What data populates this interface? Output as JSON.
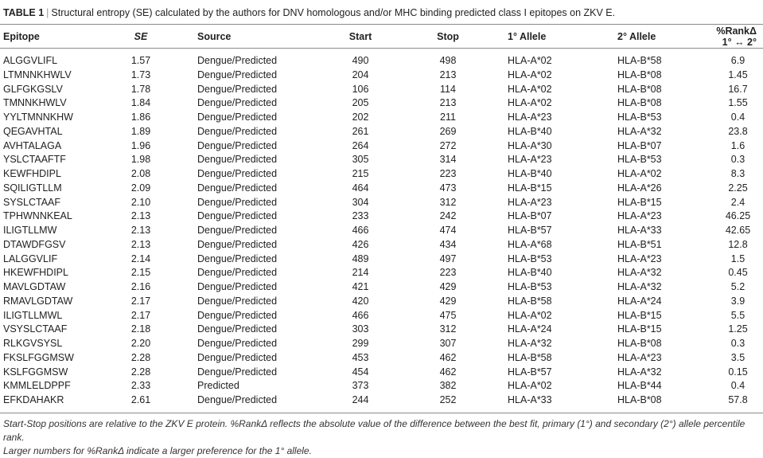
{
  "caption": {
    "label": "TABLE 1",
    "separator": "|",
    "text": "Structural entropy (SE) calculated by the authors for DNV homologous and/or MHC binding predicted class I epitopes on ZKV E."
  },
  "columns": [
    "Epitope",
    "SE",
    "Source",
    "Start",
    "Stop",
    "1° Allele",
    "2° Allele",
    "%RankΔ 1° ↔ 2°"
  ],
  "rows": [
    [
      "ALGGVLIFL",
      "1.57",
      "Dengue/Predicted",
      "490",
      "498",
      "HLA-A*02",
      "HLA-B*58",
      "6.9"
    ],
    [
      "LTMNNKHWLV",
      "1.73",
      "Dengue/Predicted",
      "204",
      "213",
      "HLA-A*02",
      "HLA-B*08",
      "1.45"
    ],
    [
      "GLFGKGSLV",
      "1.78",
      "Dengue/Predicted",
      "106",
      "114",
      "HLA-A*02",
      "HLA-B*08",
      "16.7"
    ],
    [
      "TMNNKHWLV",
      "1.84",
      "Dengue/Predicted",
      "205",
      "213",
      "HLA-A*02",
      "HLA-B*08",
      "1.55"
    ],
    [
      "YYLTMNNKHW",
      "1.86",
      "Dengue/Predicted",
      "202",
      "211",
      "HLA-A*23",
      "HLA-B*53",
      "0.4"
    ],
    [
      "QEGAVHTAL",
      "1.89",
      "Dengue/Predicted",
      "261",
      "269",
      "HLA-B*40",
      "HLA-A*32",
      "23.8"
    ],
    [
      "AVHTALAGA",
      "1.96",
      "Dengue/Predicted",
      "264",
      "272",
      "HLA-A*30",
      "HLA-B*07",
      "1.6"
    ],
    [
      "YSLCTAAFTF",
      "1.98",
      "Dengue/Predicted",
      "305",
      "314",
      "HLA-A*23",
      "HLA-B*53",
      "0.3"
    ],
    [
      "KEWFHDIPL",
      "2.08",
      "Dengue/Predicted",
      "215",
      "223",
      "HLA-B*40",
      "HLA-A*02",
      "8.3"
    ],
    [
      "SQILIGTLLM",
      "2.09",
      "Dengue/Predicted",
      "464",
      "473",
      "HLA-B*15",
      "HLA-A*26",
      "2.25"
    ],
    [
      "SYSLCTAAF",
      "2.10",
      "Dengue/Predicted",
      "304",
      "312",
      "HLA-A*23",
      "HLA-B*15",
      "2.4"
    ],
    [
      "TPHWNNKEAL",
      "2.13",
      "Dengue/Predicted",
      "233",
      "242",
      "HLA-B*07",
      "HLA-A*23",
      "46.25"
    ],
    [
      "ILIGTLLMW",
      "2.13",
      "Dengue/Predicted",
      "466",
      "474",
      "HLA-B*57",
      "HLA-A*33",
      "42.65"
    ],
    [
      "DTAWDFGSV",
      "2.13",
      "Dengue/Predicted",
      "426",
      "434",
      "HLA-A*68",
      "HLA-B*51",
      "12.8"
    ],
    [
      "LALGGVLIF",
      "2.14",
      "Dengue/Predicted",
      "489",
      "497",
      "HLA-B*53",
      "HLA-A*23",
      "1.5"
    ],
    [
      "HKEWFHDIPL",
      "2.15",
      "Dengue/Predicted",
      "214",
      "223",
      "HLA-B*40",
      "HLA-A*32",
      "0.45"
    ],
    [
      "MAVLGDTAW",
      "2.16",
      "Dengue/Predicted",
      "421",
      "429",
      "HLA-B*53",
      "HLA-A*32",
      "5.2"
    ],
    [
      "RMAVLGDTAW",
      "2.17",
      "Dengue/Predicted",
      "420",
      "429",
      "HLA-B*58",
      "HLA-A*24",
      "3.9"
    ],
    [
      "ILIGTLLMWL",
      "2.17",
      "Dengue/Predicted",
      "466",
      "475",
      "HLA-A*02",
      "HLA-B*15",
      "5.5"
    ],
    [
      "VSYSLCTAAF",
      "2.18",
      "Dengue/Predicted",
      "303",
      "312",
      "HLA-A*24",
      "HLA-B*15",
      "1.25"
    ],
    [
      "RLKGVSYSL",
      "2.20",
      "Dengue/Predicted",
      "299",
      "307",
      "HLA-A*32",
      "HLA-B*08",
      "0.3"
    ],
    [
      "FKSLFGGMSW",
      "2.28",
      "Dengue/Predicted",
      "453",
      "462",
      "HLA-B*58",
      "HLA-A*23",
      "3.5"
    ],
    [
      "KSLFGGMSW",
      "2.28",
      "Dengue/Predicted",
      "454",
      "462",
      "HLA-B*57",
      "HLA-A*32",
      "0.15"
    ],
    [
      "KMMLELDPPF",
      "2.33",
      "Predicted",
      "373",
      "382",
      "HLA-A*02",
      "HLA-B*44",
      "0.4"
    ],
    [
      "EFKDAHAKR",
      "2.61",
      "Dengue/Predicted",
      "244",
      "252",
      "HLA-A*33",
      "HLA-B*08",
      "57.8"
    ]
  ],
  "footnote": {
    "line1": "Start-Stop positions are relative to the ZKV E protein. %RankΔ reflects the absolute value of the difference between the best fit, primary (1°) and secondary (2°) allele percentile rank.",
    "line2": "Larger numbers for %RankΔ indicate a larger preference for the 1° allele."
  }
}
